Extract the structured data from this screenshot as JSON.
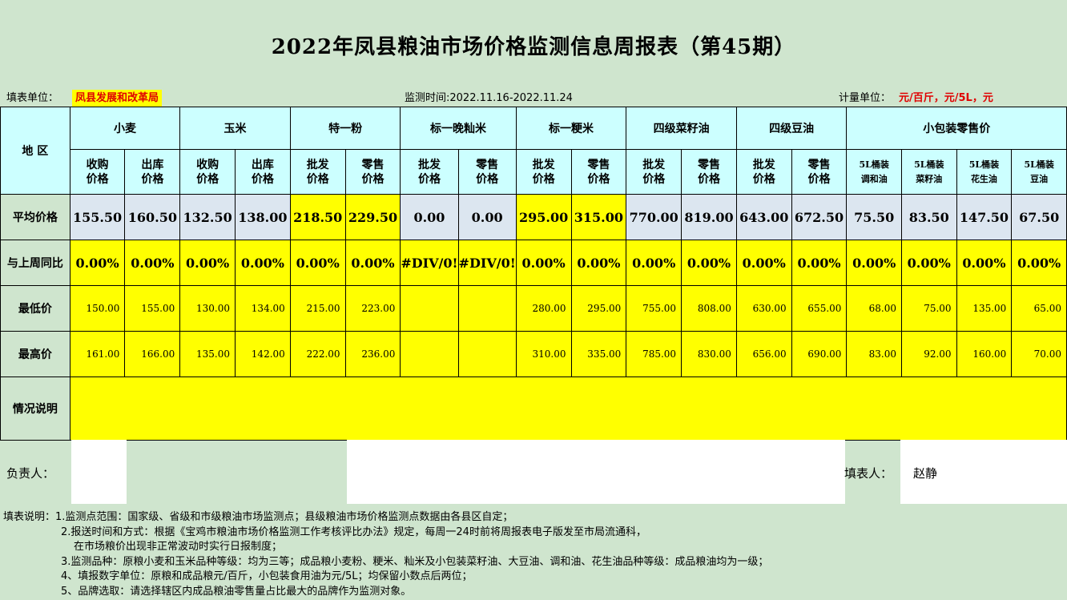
{
  "title": "2022年凤县粮油市场价格监测信息周报表（第45期）",
  "header": {
    "unit_label": "填表单位：",
    "unit_value": "凤县发展和改革局",
    "period": "监测时间:2022.11.16-2022.11.24",
    "measure_label": "计量单位：",
    "measure_value": "元/百斤，元/5L，元"
  },
  "table": {
    "region_label": "地  区",
    "groups": [
      "小麦",
      "玉米",
      "特一粉",
      "标一晚籼米",
      "标一粳米",
      "四级菜籽油",
      "四级豆油",
      "小包装零售价"
    ],
    "subheads": [
      "收购\n价格",
      "出库\n价格",
      "收购\n价格",
      "出库\n价格",
      "批发\n价格",
      "零售\n价格",
      "批发\n价格",
      "零售\n价格",
      "批发\n价格",
      "零售\n价格",
      "批发\n价格",
      "零售\n价格",
      "批发\n价格",
      "零售\n价格",
      "5L桶装\n调和油",
      "5L桶装\n菜籽油",
      "5L桶装\n花生油",
      "5L桶装\n豆油"
    ],
    "rows": [
      {
        "label": "平均价格",
        "values": [
          "155.50",
          "160.50",
          "132.50",
          "138.00",
          "218.50",
          "229.50",
          "0.00",
          "0.00",
          "295.00",
          "315.00",
          "770.00",
          "819.00",
          "643.00",
          "672.50",
          "75.50",
          "83.50",
          "147.50",
          "67.50"
        ]
      },
      {
        "label": "与上周同比",
        "values": [
          "0.00%",
          "0.00%",
          "0.00%",
          "0.00%",
          "0.00%",
          "0.00%",
          "#DIV/0!",
          "#DIV/0!",
          "0.00%",
          "0.00%",
          "0.00%",
          "0.00%",
          "0.00%",
          "0.00%",
          "0.00%",
          "0.00%",
          "0.00%",
          "0.00%"
        ]
      },
      {
        "label": "最低价",
        "values": [
          "150.00",
          "155.00",
          "130.00",
          "134.00",
          "215.00",
          "223.00",
          "",
          "",
          "280.00",
          "295.00",
          "755.00",
          "808.00",
          "630.00",
          "655.00",
          "68.00",
          "75.00",
          "135.00",
          "65.00"
        ]
      },
      {
        "label": "最高价",
        "values": [
          "161.00",
          "166.00",
          "135.00",
          "142.00",
          "222.00",
          "236.00",
          "",
          "",
          "310.00",
          "335.00",
          "785.00",
          "830.00",
          "656.00",
          "690.00",
          "83.00",
          "92.00",
          "160.00",
          "70.00"
        ]
      }
    ],
    "notes_label": "情况说明",
    "notes_value": ""
  },
  "signatures": {
    "responsible_label": "负责人：",
    "filler_label": "填表人：",
    "filler_name": "赵静"
  },
  "notes": [
    "填表说明：1.监测点范围：国家级、省级和市级粮油市场监测点；县级粮油市场价格监测点数据由各县区自定；",
    "2.报送时间和方式：根据《宝鸡市粮油市场价格监测工作考核评比办法》规定，每周一24时前将周报表电子版发至市局流通科，",
    "在市场粮价出现非正常波动时实行日报制度；",
    "3.监测品种：原粮小麦和玉米品种等级：均为三等；成品粮小麦粉、粳米、籼米及小包装菜籽油、大豆油、调和油、花生油品种等级：成品粮油均为一级；",
    "4、填报数字单位：原粮和成品粮元/百斤，小包装食用油为元/5L；均保留小数点后两位；",
    "5、品牌选取：请选择辖区内成品粮油零售量占比最大的品牌作为监测对象。"
  ],
  "colors": {
    "sheet_bg": "#cfe5ce",
    "header_bg": "#ccffff",
    "avg_bg": "#dce6f0",
    "highlight": "#ffff00",
    "red_text": "#e00000"
  }
}
